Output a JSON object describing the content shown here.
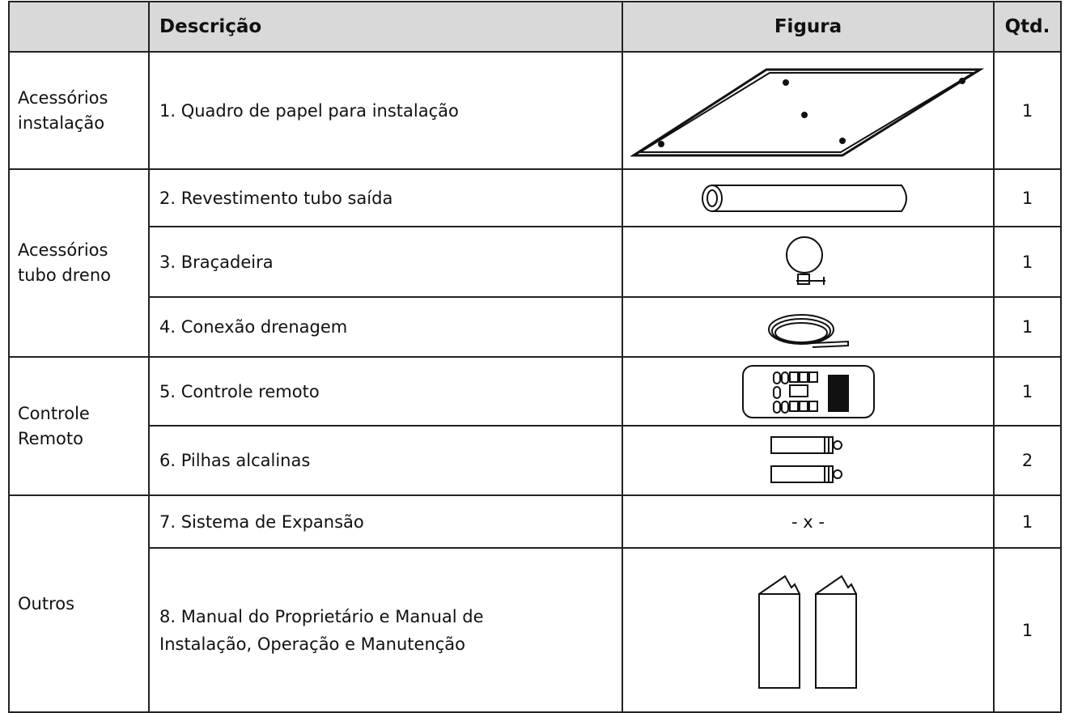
{
  "header": {
    "cells": [
      "Descrição",
      "Figura",
      "Qtd."
    ]
  },
  "groups": [
    {
      "label": "Acessórios instalação",
      "items": [
        {
          "description": "1. Quadro de papel para instalação",
          "qty": 1
        }
      ]
    },
    {
      "label": "Acessórios tubo dreno",
      "items": [
        {
          "description": "2. Revestimento tubo saída",
          "qty": 1
        },
        {
          "description": "3. Braçadeira",
          "qty": 1
        },
        {
          "description": "4. Conexão drenagem",
          "qty": 1
        }
      ]
    },
    {
      "label": "Controle Remoto",
      "items": [
        {
          "description": "5. Controle remoto",
          "qty": 1
        },
        {
          "description": "6. Pilhas alcalinas",
          "qty": 2
        }
      ]
    },
    {
      "label": "Outros",
      "items": [
        {
          "description": "7. Sistema de Expansão",
          "figure_text": "- x -",
          "qty": 1
        },
        {
          "description": "8. Manual do Proprietário e Manual de Instalação, Operação e Manutenção",
          "qty": 1
        }
      ]
    }
  ]
}
